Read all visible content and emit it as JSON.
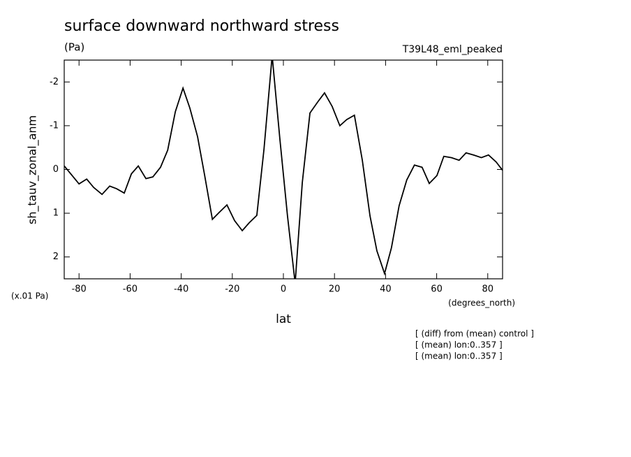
{
  "chart_data": {
    "type": "line",
    "title": "surface downward northward stress",
    "subtitle": "(Pa)",
    "run_label": "T39L48_eml_peaked",
    "ylabel": "sh_tauv_zonal_anm",
    "y_unit": "(x.01 Pa)",
    "x_unit": "(degrees_north)",
    "xlabel": "lat",
    "notes": [
      "[ (diff) from (mean) control ]",
      "[ (mean) lon:0..357 ]",
      "[ (mean) lon:0..357 ]"
    ],
    "x": [
      -85.8,
      -80.0,
      -77.0,
      -74.3,
      -71.0,
      -68.0,
      -65.3,
      -62.3,
      -59.5,
      -56.8,
      -53.8,
      -51.1,
      -48.1,
      -45.3,
      -42.3,
      -39.3,
      -36.6,
      -33.6,
      -30.9,
      -27.8,
      -25.1,
      -22.1,
      -19.1,
      -16.1,
      -13.4,
      -10.4,
      -7.6,
      -4.4,
      -1.4,
      1.6,
      4.6,
      7.4,
      10.4,
      13.4,
      16.1,
      19.1,
      22.1,
      24.8,
      27.8,
      30.9,
      33.9,
      36.6,
      39.6,
      42.3,
      45.3,
      48.3,
      51.3,
      54.3,
      57.1,
      60.1,
      62.8,
      65.8,
      68.8,
      71.5,
      74.5,
      77.5,
      80.3,
      83.3,
      85.8
    ],
    "series": [
      {
        "name": "sh_tauv_zonal_anm",
        "color": "#000000",
        "values": [
          -0.08,
          0.33,
          0.22,
          0.41,
          0.57,
          0.38,
          0.44,
          0.54,
          0.1,
          -0.08,
          0.21,
          0.17,
          -0.05,
          -0.44,
          -1.32,
          -1.86,
          -1.4,
          -0.75,
          0.11,
          1.14,
          0.98,
          0.81,
          1.17,
          1.4,
          1.22,
          1.05,
          -0.46,
          -2.6,
          -0.71,
          1.06,
          2.6,
          0.3,
          -1.29,
          -1.54,
          -1.75,
          -1.44,
          -1.0,
          -1.14,
          -1.24,
          -0.21,
          1.06,
          1.86,
          2.38,
          1.79,
          0.83,
          0.24,
          -0.1,
          -0.05,
          0.32,
          0.14,
          -0.3,
          -0.27,
          -0.21,
          -0.38,
          -0.33,
          -0.27,
          -0.33,
          -0.17,
          0.02
        ]
      }
    ],
    "xlim": [
      -85.8,
      85.8
    ],
    "xticks": [
      -80,
      -60,
      -40,
      -20,
      0,
      20,
      40,
      60,
      80
    ],
    "ylim": [
      -2.5,
      2.5
    ],
    "y_inverted": true,
    "yticks": [
      -2,
      -1,
      0,
      1,
      2
    ]
  }
}
